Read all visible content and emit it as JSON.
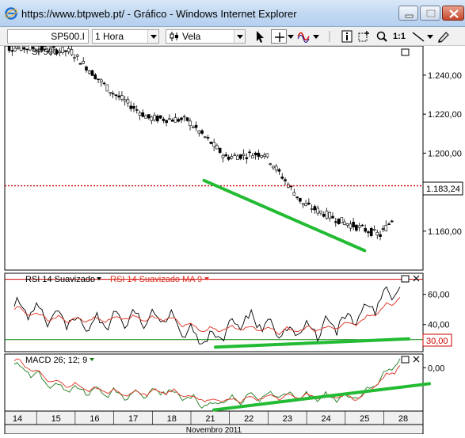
{
  "window": {
    "title": "https://www.btpweb.pt/ - Gráfico - Windows Internet Explorer",
    "icon": "internet-explorer-icon"
  },
  "toolbar": {
    "symbol": "SP500.I",
    "period": "1 Hora",
    "chart_type": "Vela",
    "zoom_label": "1:1",
    "icons": [
      "cursor-arrow-icon",
      "crosshair-icon",
      "indicator-wave-icon",
      "info-icon",
      "zoom-area-icon",
      "zoom-icon",
      "trendline-icon",
      "pen-icon"
    ]
  },
  "main_pane": {
    "label": "SP500",
    "current_price_label": "1.183,24",
    "y_ticks": [
      "1.240,00",
      "1.220,00",
      "1.200,00",
      "1.160,00"
    ]
  },
  "rsi_pane": {
    "label": "RSI 14 Suavizado",
    "ma_label": "RSI 14 Suavizado MA 9",
    "y_ticks": [
      "60,00",
      "40,00"
    ],
    "level_label": "30,00"
  },
  "macd_pane": {
    "label": "MACD 26; 12; 9",
    "y_ticks": [
      "0,00"
    ]
  },
  "x_axis": {
    "ticks": [
      "14",
      "15",
      "16",
      "17",
      "18",
      "21",
      "22",
      "23",
      "24",
      "25",
      "28"
    ],
    "month_label": "Novembro 2011"
  },
  "colors": {
    "candle": "#000000",
    "rsi_line": "#000000",
    "ma_line": "#e03020",
    "price_line": "#cc0000",
    "rsi_level": "#008000",
    "annotation": "#22bb33",
    "macd_line": "#1f7a1f",
    "signal_line": "#e03020"
  },
  "chart_data": [
    {
      "type": "candlestick",
      "title": "SP500",
      "x": [
        "14",
        "15",
        "16",
        "17",
        "18",
        "21",
        "22",
        "23",
        "24",
        "25",
        "28"
      ],
      "close": [
        1254,
        1252,
        1232,
        1218,
        1217,
        1198,
        1200,
        1174,
        1165,
        1158,
        1183.24
      ],
      "ylim": [
        1140,
        1255
      ],
      "annotation": "descending trendline from 1186 (21) to 1150 (25)"
    },
    {
      "type": "line",
      "title": "RSI 14 Suavizado",
      "x": [
        "14",
        "15",
        "16",
        "17",
        "18",
        "21",
        "22",
        "23",
        "24",
        "25",
        "28"
      ],
      "series": [
        {
          "name": "RSI 14 Suavizado",
          "values": [
            52,
            46,
            40,
            45,
            44,
            28,
            44,
            35,
            38,
            48,
            65
          ]
        },
        {
          "name": "RSI 14 Suavizado MA 9",
          "values": [
            50,
            44,
            43,
            44,
            44,
            36,
            38,
            36,
            37,
            42,
            58
          ]
        }
      ],
      "ylim": [
        22,
        74
      ],
      "levels": [
        30
      ],
      "annotation": "ascending trendline across the lows"
    },
    {
      "type": "line",
      "title": "MACD 26; 12; 9",
      "x": [
        "14",
        "15",
        "16",
        "17",
        "18",
        "21",
        "22",
        "23",
        "24",
        "25",
        "28"
      ],
      "series": [
        {
          "name": "MACD",
          "values": [
            0.3,
            -1.6,
            -2.0,
            -2.4,
            -2.0,
            -3.3,
            -2.6,
            -2.4,
            -2.6,
            -2.6,
            0.8
          ]
        },
        {
          "name": "Signal",
          "values": [
            0.6,
            -1.2,
            -1.9,
            -2.3,
            -2.1,
            -2.9,
            -2.7,
            -2.5,
            -2.5,
            -2.6,
            0.2
          ]
        }
      ],
      "ylim": [
        -3.8,
        1.2
      ],
      "annotation": "ascending trendline across the lows"
    }
  ]
}
